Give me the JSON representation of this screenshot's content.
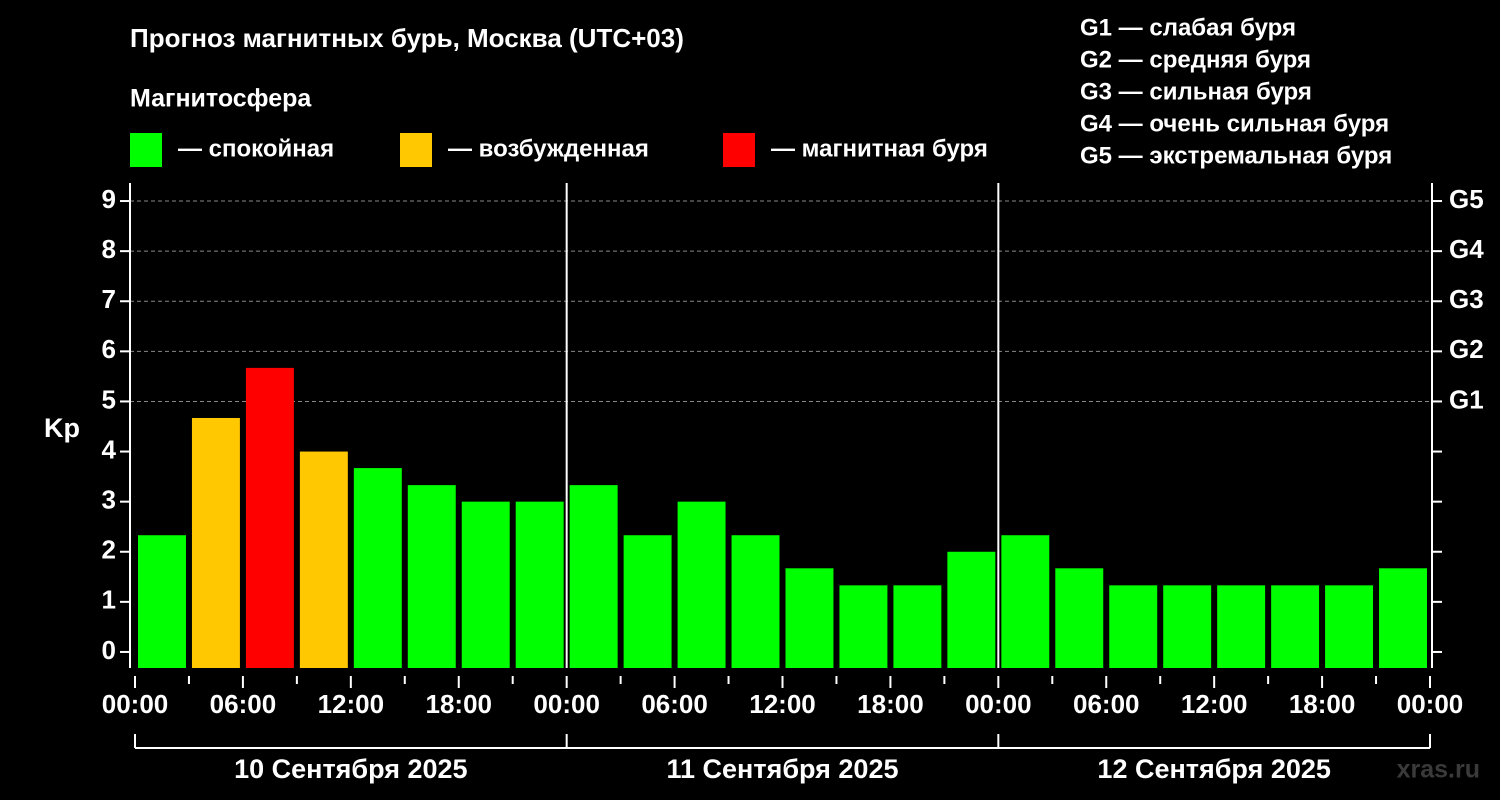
{
  "chart_data": {
    "type": "bar",
    "title": "Прогноз магнитных бурь, Москва (UTC+03)",
    "subtitle": "Магнитосфера",
    "ylabel": "Kp",
    "legend": [
      {
        "label": "— спокойная",
        "color": "#00ff00"
      },
      {
        "label": "— возбужденная",
        "color": "#ffc800"
      },
      {
        "label": "— магнитная буря",
        "color": "#ff0000"
      }
    ],
    "storm_scale": [
      "G1 — слабая буря",
      "G2 — средняя буря",
      "G3 — сильная буря",
      "G4 — очень сильная буря",
      "G5 — экстремальная буря"
    ],
    "x": [
      0,
      3,
      6,
      9,
      12,
      15,
      18,
      21,
      24,
      27,
      30,
      33,
      36,
      39,
      42,
      45,
      48,
      51,
      54,
      57,
      60,
      63,
      66,
      69
    ],
    "values": [
      2.33,
      4.67,
      5.67,
      4.0,
      3.67,
      3.33,
      3.0,
      3.0,
      3.33,
      2.33,
      3.0,
      2.33,
      1.67,
      1.33,
      1.33,
      2.0,
      2.33,
      1.67,
      1.33,
      1.33,
      1.33,
      1.33,
      1.33,
      1.67
    ],
    "colors": [
      "#00ff00",
      "#ffc800",
      "#ff0000",
      "#ffc800",
      "#00ff00",
      "#00ff00",
      "#00ff00",
      "#00ff00",
      "#00ff00",
      "#00ff00",
      "#00ff00",
      "#00ff00",
      "#00ff00",
      "#00ff00",
      "#00ff00",
      "#00ff00",
      "#00ff00",
      "#00ff00",
      "#00ff00",
      "#00ff00",
      "#00ff00",
      "#00ff00",
      "#00ff00",
      "#00ff00"
    ],
    "bar_width": 3,
    "xlim": [
      0,
      72
    ],
    "xticks": [
      {
        "value": 0,
        "label": "00:00"
      },
      {
        "value": 6,
        "label": "06:00"
      },
      {
        "value": 12,
        "label": "12:00"
      },
      {
        "value": 18,
        "label": "18:00"
      },
      {
        "value": 24,
        "label": "00:00"
      },
      {
        "value": 30,
        "label": "06:00"
      },
      {
        "value": 36,
        "label": "12:00"
      },
      {
        "value": 42,
        "label": "18:00"
      },
      {
        "value": 48,
        "label": "00:00"
      },
      {
        "value": 54,
        "label": "06:00"
      },
      {
        "value": 60,
        "label": "12:00"
      },
      {
        "value": 66,
        "label": "18:00"
      },
      {
        "value": 72,
        "label": "00:00"
      }
    ],
    "days": [
      "10 Сентября 2025",
      "11 Сентября 2025",
      "12 Сентября 2025"
    ],
    "ylim": [
      -0.32,
      9.36
    ],
    "yticks": [
      0,
      1,
      2,
      3,
      4,
      5,
      6,
      7,
      8,
      9
    ],
    "y2lim": [
      -0.32,
      9.36
    ],
    "y2ticks": [
      {
        "value": 5,
        "label": "G1"
      },
      {
        "value": 6,
        "label": "G2"
      },
      {
        "value": 7,
        "label": "G3"
      },
      {
        "value": 8,
        "label": "G4"
      },
      {
        "value": 9,
        "label": "G5"
      }
    ],
    "grid": true,
    "watermark": "xras.ru"
  }
}
